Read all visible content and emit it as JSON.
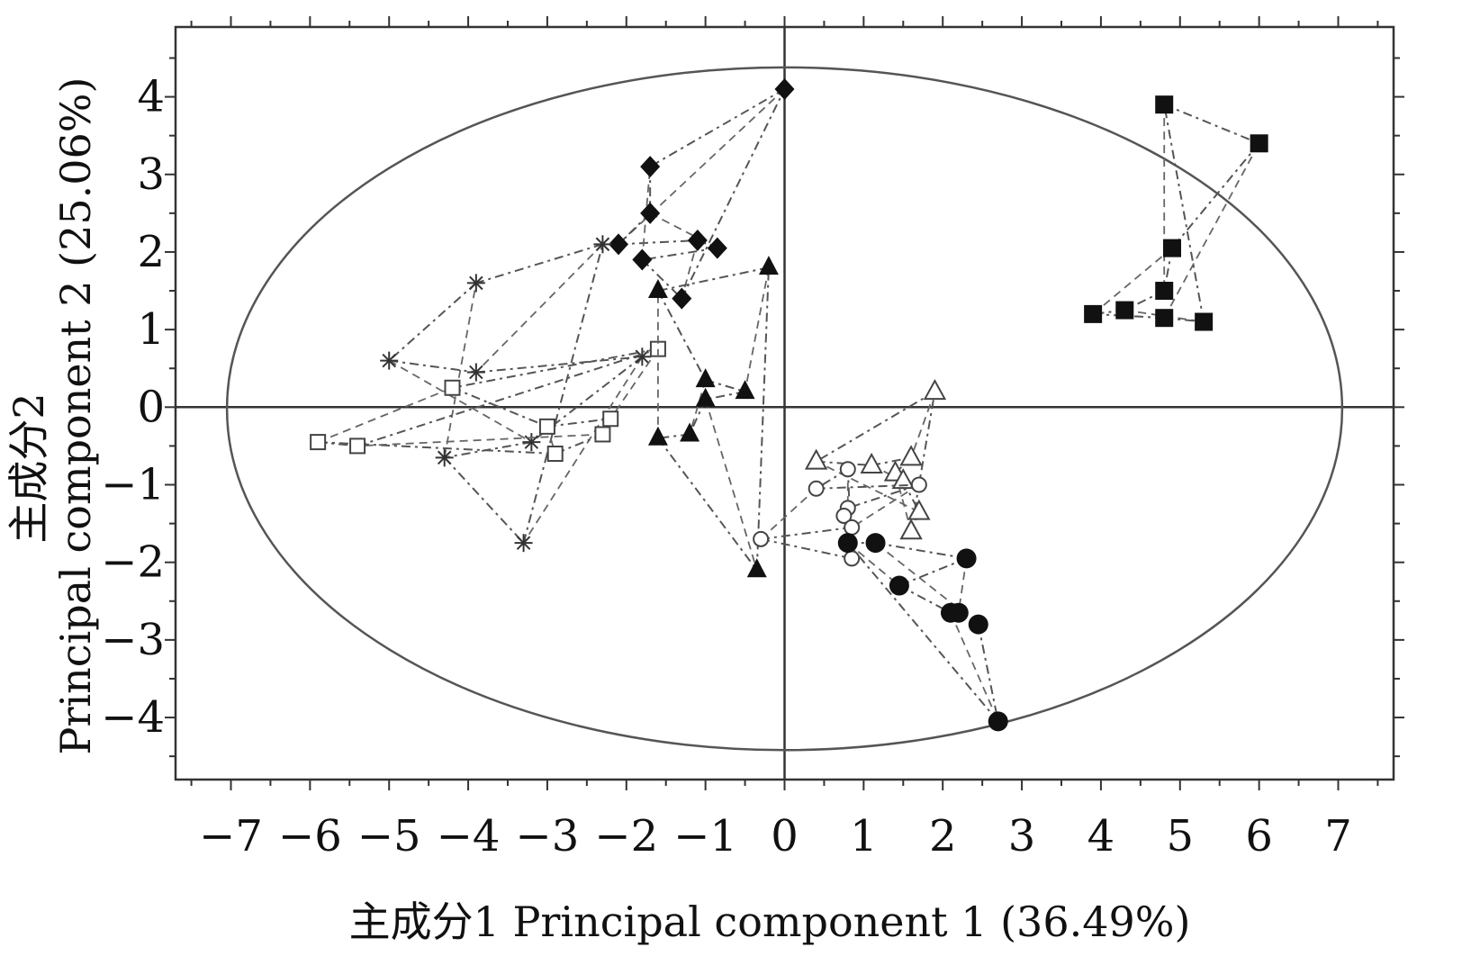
{
  "chart_data": {
    "type": "scatter",
    "title": "",
    "xlabel": "主成分1  Principal component 1 (36.49%)",
    "ylabel_cn": "主成分2",
    "ylabel_en": "Principal component 2 (25.06%)",
    "xlim": [
      -7.7,
      7.7
    ],
    "ylim": [
      -4.8,
      4.9
    ],
    "x_ticks": [
      -7,
      -6,
      -5,
      -4,
      -3,
      -2,
      -1,
      0,
      1,
      2,
      3,
      4,
      5,
      6,
      7
    ],
    "y_ticks": [
      -4,
      -3,
      -2,
      -1,
      0,
      1,
      2,
      3,
      4
    ],
    "tick_labels_x": [
      "−7",
      "−6",
      "−5",
      "−4",
      "−3",
      "−2",
      "−1",
      "0",
      "1",
      "2",
      "3",
      "4",
      "5",
      "6",
      "7"
    ],
    "tick_labels_y": [
      "−4",
      "−3",
      "−2",
      "−1",
      "0",
      "1",
      "2",
      "3",
      "4"
    ],
    "grid": false,
    "legend": "none",
    "zero_lines": true,
    "confidence_ellipse": {
      "center": [
        0,
        -0.02
      ],
      "rx": 7.05,
      "ry": 4.4
    },
    "series": [
      {
        "marker": "filled-diamond",
        "points": [
          [
            0.0,
            4.1
          ],
          [
            -1.7,
            3.1
          ],
          [
            -1.7,
            2.5
          ],
          [
            -2.1,
            2.1
          ],
          [
            -1.1,
            2.15
          ],
          [
            -0.85,
            2.05
          ],
          [
            -1.8,
            1.9
          ],
          [
            -1.3,
            1.4
          ]
        ]
      },
      {
        "marker": "filled-square",
        "points": [
          [
            4.8,
            3.9
          ],
          [
            6.0,
            3.4
          ],
          [
            4.9,
            2.05
          ],
          [
            4.8,
            1.5
          ],
          [
            4.3,
            1.25
          ],
          [
            3.9,
            1.2
          ],
          [
            4.8,
            1.15
          ],
          [
            5.3,
            1.1
          ]
        ]
      },
      {
        "marker": "asterisk",
        "points": [
          [
            -2.3,
            2.1
          ],
          [
            -3.9,
            1.6
          ],
          [
            -5.0,
            0.6
          ],
          [
            -3.9,
            0.45
          ],
          [
            -1.8,
            0.65
          ],
          [
            -3.2,
            -0.45
          ],
          [
            -4.3,
            -0.65
          ],
          [
            -3.3,
            -1.75
          ]
        ]
      },
      {
        "marker": "open-square",
        "points": [
          [
            -1.6,
            0.75
          ],
          [
            -4.2,
            0.25
          ],
          [
            -3.0,
            -0.25
          ],
          [
            -2.2,
            -0.15
          ],
          [
            -2.3,
            -0.35
          ],
          [
            -2.9,
            -0.6
          ],
          [
            -5.9,
            -0.45
          ],
          [
            -5.4,
            -0.5
          ]
        ]
      },
      {
        "marker": "filled-triangle",
        "points": [
          [
            -0.2,
            1.8
          ],
          [
            -1.6,
            1.5
          ],
          [
            -1.0,
            0.35
          ],
          [
            -0.5,
            0.2
          ],
          [
            -1.0,
            0.1
          ],
          [
            -1.2,
            -0.35
          ],
          [
            -1.6,
            -0.4
          ],
          [
            -0.35,
            -2.1
          ]
        ]
      },
      {
        "marker": "open-triangle",
        "points": [
          [
            1.9,
            0.2
          ],
          [
            0.4,
            -0.7
          ],
          [
            1.1,
            -0.75
          ],
          [
            1.6,
            -0.65
          ],
          [
            1.4,
            -0.85
          ],
          [
            1.5,
            -0.95
          ],
          [
            1.7,
            -1.35
          ],
          [
            1.6,
            -1.6
          ]
        ]
      },
      {
        "marker": "open-circle",
        "points": [
          [
            0.8,
            -0.8
          ],
          [
            0.4,
            -1.05
          ],
          [
            1.7,
            -1.0
          ],
          [
            0.8,
            -1.3
          ],
          [
            0.75,
            -1.4
          ],
          [
            0.85,
            -1.55
          ],
          [
            -0.3,
            -1.7
          ],
          [
            0.85,
            -1.95
          ]
        ]
      },
      {
        "marker": "filled-circle",
        "points": [
          [
            0.8,
            -1.75
          ],
          [
            1.15,
            -1.75
          ],
          [
            2.3,
            -1.95
          ],
          [
            1.45,
            -2.3
          ],
          [
            2.1,
            -2.65
          ],
          [
            2.2,
            -2.65
          ],
          [
            2.45,
            -2.8
          ],
          [
            2.7,
            -4.05
          ]
        ]
      }
    ]
  }
}
